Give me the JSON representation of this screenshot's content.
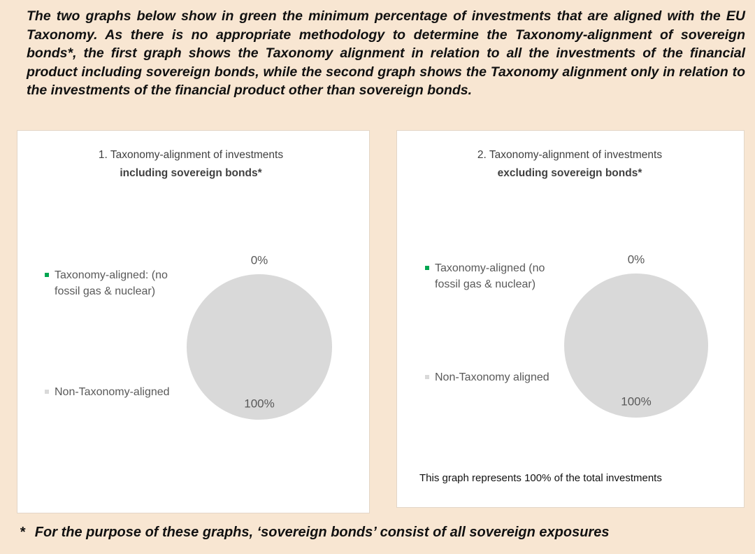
{
  "intro": "The two graphs below show in green the minimum percentage of investments that are aligned with the EU Taxonomy. As there is no appropriate methodology to determine the Taxonomy-alignment of sovereign bonds*, the first graph shows the Taxonomy alignment in relation to all the investments of the financial product including sovereign bonds, while the second graph shows the Taxonomy alignment only in relation to the investments of the financial product other than sovereign bonds.",
  "footnote_marker": "*",
  "footnote": "For the purpose of these graphs, ‘sovereign bonds’ consist of  all sovereign exposures",
  "chart_data": [
    {
      "type": "pie",
      "title": "1. Taxonomy-alignment of investments",
      "subtitle": "including sovereign bonds*",
      "categories": [
        "Taxonomy-aligned: (no fossil gas & nuclear)",
        "Non-Taxonomy-aligned"
      ],
      "values": [
        0,
        100
      ],
      "value_labels": [
        "0%",
        "100%"
      ],
      "colors": [
        "#00a651",
        "#d9d9d9"
      ]
    },
    {
      "type": "pie",
      "title": "2. Taxonomy-alignment of investments",
      "subtitle": "excluding sovereign bonds*",
      "categories": [
        "Taxonomy-aligned (no fossil gas & nuclear)",
        "Non-Taxonomy aligned"
      ],
      "values": [
        0,
        100
      ],
      "value_labels": [
        "0%",
        "100%"
      ],
      "colors": [
        "#00a651",
        "#d9d9d9"
      ],
      "note": "This graph represents 100% of the total investments"
    }
  ]
}
